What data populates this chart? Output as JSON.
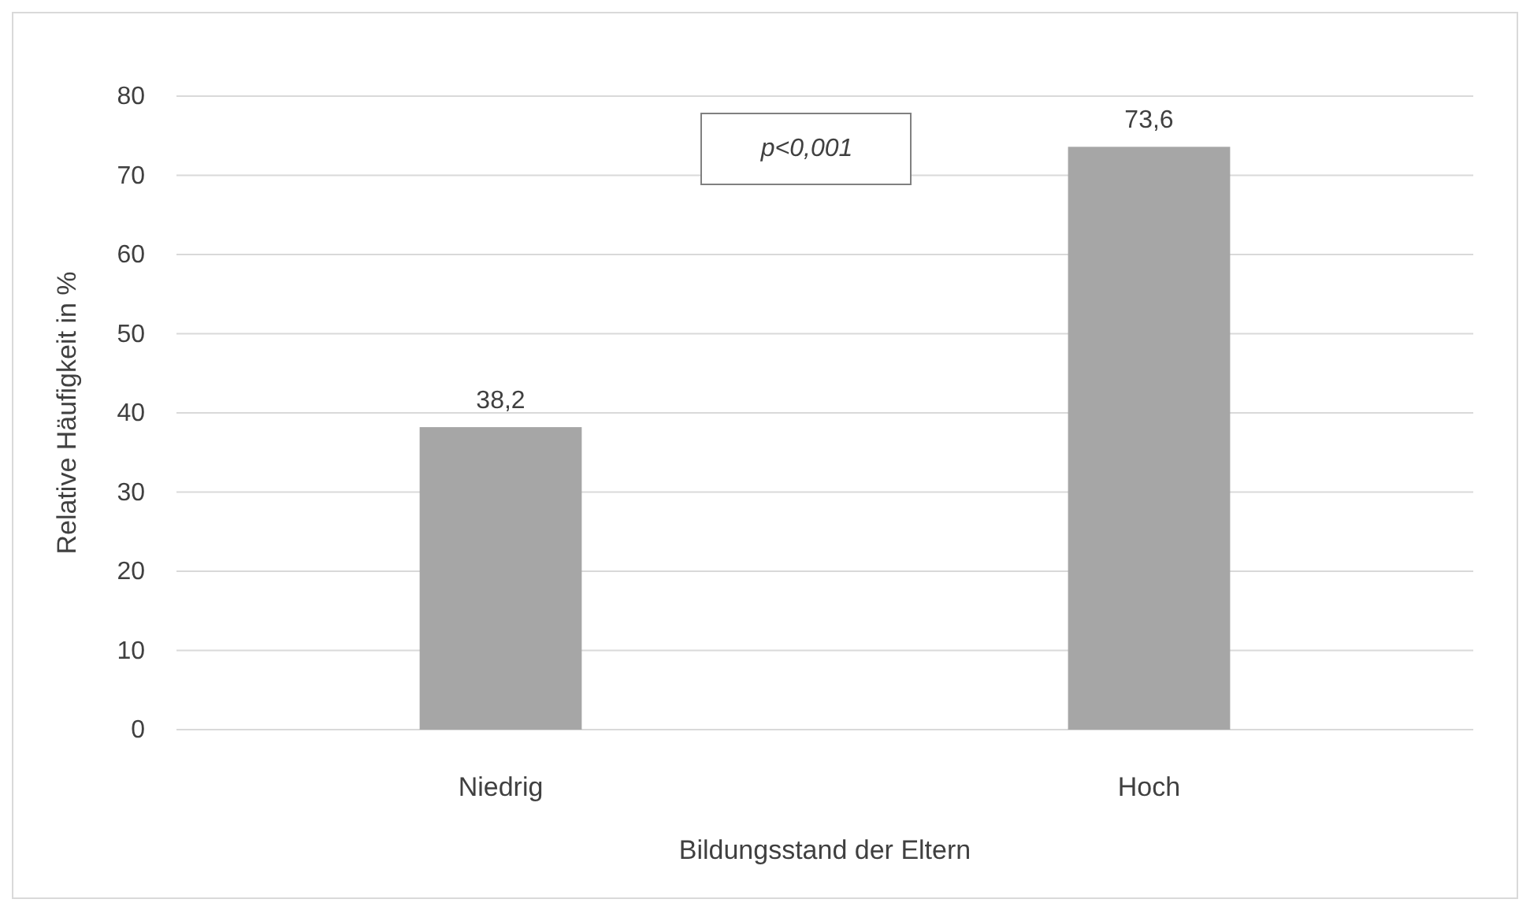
{
  "chart_data": {
    "type": "bar",
    "xlabel": "Bildungsstand der Eltern",
    "ylabel": "Relative Häufigkeit in %",
    "categories": [
      "Niedrig",
      "Hoch"
    ],
    "values": [
      38.2,
      73.6
    ],
    "color": "#a6a6a6",
    "value_labels": [
      "38,2",
      "73,6"
    ],
    "ylim": [
      0,
      80
    ],
    "yticks": [
      0,
      10,
      20,
      30,
      40,
      50,
      60,
      70,
      80
    ],
    "grid": "y",
    "annotations": [
      "p<0,001"
    ]
  }
}
